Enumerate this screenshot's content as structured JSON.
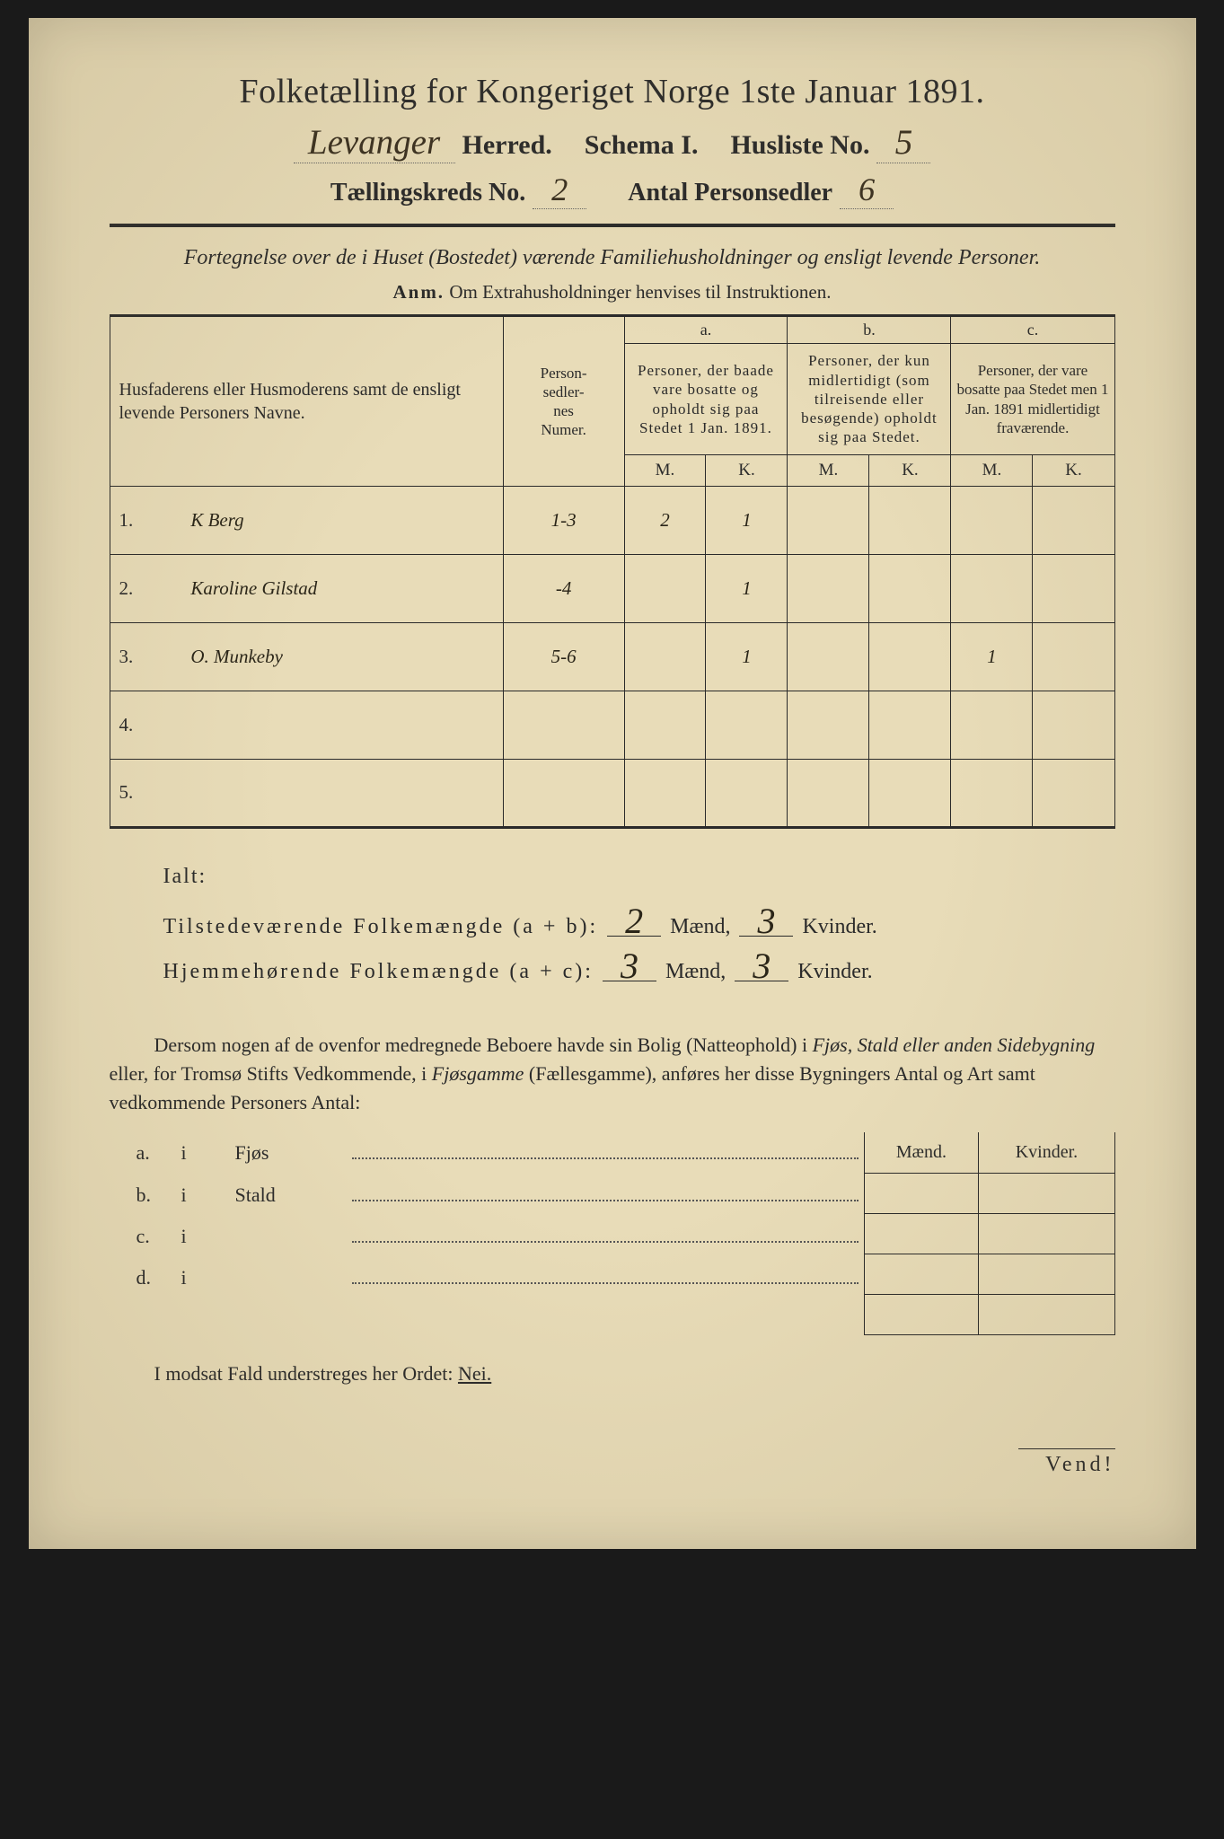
{
  "header": {
    "title": "Folketælling for Kongeriget Norge 1ste Januar 1891.",
    "herred_hw": "Levanger",
    "herred_label": "Herred.",
    "schema_label": "Schema I.",
    "husliste_label": "Husliste No.",
    "husliste_hw": "5",
    "kreds_label": "Tællingskreds No.",
    "kreds_hw": "2",
    "antal_label": "Antal Personsedler",
    "antal_hw": "6"
  },
  "subtitle": "Fortegnelse over de i Huset (Bostedet) værende Familiehusholdninger og ensligt levende Personer.",
  "anm_label": "Anm.",
  "anm_text": "Om Extrahusholdninger henvises til Instruktionen.",
  "table": {
    "columns": {
      "names": "Husfaderens eller Husmoderens samt de ensligt levende Personers Navne.",
      "personsedler": "Person-\nsedler-\nnes\nNumer.",
      "a_letter": "a.",
      "a_text": "Personer, der baade vare bosatte og opholdt sig paa Stedet 1 Jan. 1891.",
      "b_letter": "b.",
      "b_text": "Personer, der kun midlertidigt (som tilreisende eller besøgende) opholdt sig paa Stedet.",
      "c_letter": "c.",
      "c_text": "Personer, der vare bosatte paa Stedet men 1 Jan. 1891 midlertidigt fraværende.",
      "m": "M.",
      "k": "K."
    },
    "rows": [
      {
        "n": "1.",
        "name": "K Berg",
        "pers": "1-3",
        "am": "2",
        "ak": "1",
        "bm": "",
        "bk": "",
        "cm": "",
        "ck": ""
      },
      {
        "n": "2.",
        "name": "Karoline Gilstad",
        "pers": "-4",
        "am": "",
        "ak": "1",
        "bm": "",
        "bk": "",
        "cm": "",
        "ck": ""
      },
      {
        "n": "3.",
        "name": "O. Munkeby",
        "pers": "5-6",
        "am": "",
        "ak": "1",
        "bm": "",
        "bk": "",
        "cm": "1",
        "ck": ""
      },
      {
        "n": "4.",
        "name": "",
        "pers": "",
        "am": "",
        "ak": "",
        "bm": "",
        "bk": "",
        "cm": "",
        "ck": ""
      },
      {
        "n": "5.",
        "name": "",
        "pers": "",
        "am": "",
        "ak": "",
        "bm": "",
        "bk": "",
        "cm": "",
        "ck": ""
      }
    ]
  },
  "totals": {
    "ialt": "Ialt:",
    "line1_label": "Tilstedeværende Folkemængde (a + b):",
    "line1_m": "2",
    "line1_k": "3",
    "line2_label": "Hjemmehørende Folkemængde (a + c):",
    "line2_m": "3",
    "line2_k": "3",
    "maend": "Mænd,",
    "kvinder": "Kvinder."
  },
  "paragraph": {
    "t1": "Dersom nogen af de ovenfor medregnede Beboere havde sin Bolig (Natteophold) i ",
    "i1": "Fjøs, Stald eller anden Sidebygning",
    "t2": " eller, for Tromsø Stifts Vedkommende, i ",
    "i2": "Fjøsgamme",
    "t3": " (Fællesgamme), anføres her disse Bygningers Antal og Art samt vedkommende Personers Antal:"
  },
  "bygning": {
    "header_m": "Mænd.",
    "header_k": "Kvinder.",
    "rows": [
      {
        "letter": "a.",
        "i": "i",
        "name": "Fjøs"
      },
      {
        "letter": "b.",
        "i": "i",
        "name": "Stald"
      },
      {
        "letter": "c.",
        "i": "i",
        "name": ""
      },
      {
        "letter": "d.",
        "i": "i",
        "name": ""
      }
    ]
  },
  "nei_line": {
    "t1": "I modsat Fald understreges her Ordet: ",
    "nei": "Nei."
  },
  "vend": "Vend!",
  "colors": {
    "page_bg": "#e8dcb8",
    "ink": "#2a2a2a",
    "handwriting": "#2a2518"
  }
}
